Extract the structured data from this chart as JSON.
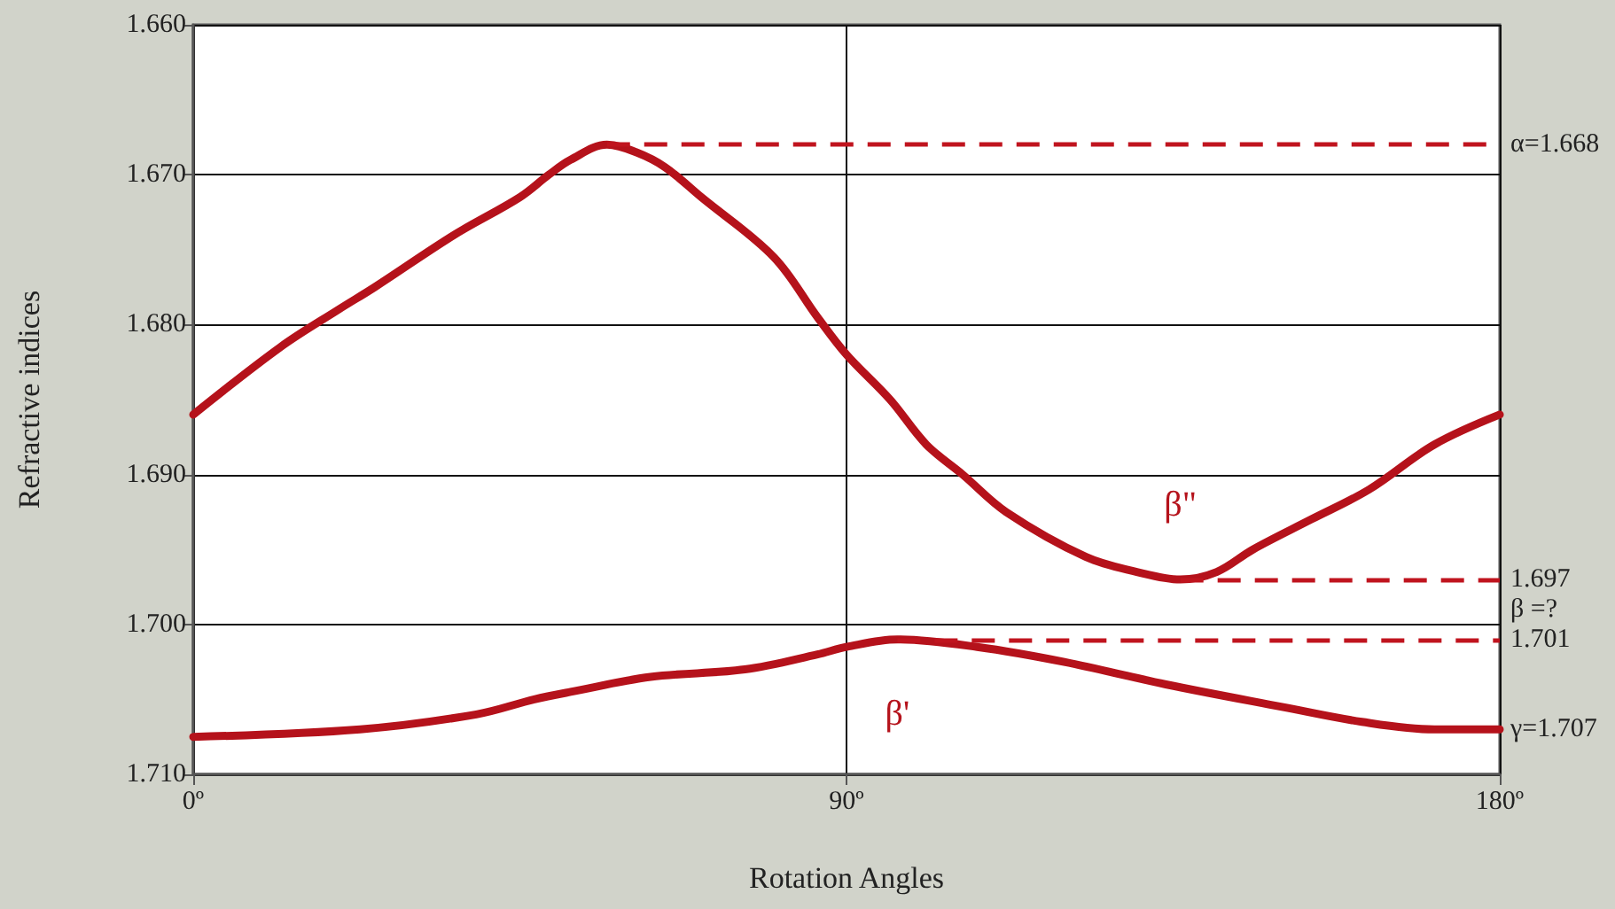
{
  "chart_data": {
    "type": "line",
    "xlabel": "Rotation Angles",
    "ylabel": "Refractive indices",
    "xlim": [
      0,
      180
    ],
    "xticks": [
      {
        "value": 0,
        "label": "0º"
      },
      {
        "value": 90,
        "label": "90º"
      },
      {
        "value": 180,
        "label": "180º"
      }
    ],
    "ylim": [
      1.71,
      1.66
    ],
    "yticks": [
      {
        "value": 1.66,
        "label": "1.660"
      },
      {
        "value": 1.67,
        "label": "1.670"
      },
      {
        "value": 1.68,
        "label": "1.680"
      },
      {
        "value": 1.69,
        "label": "1.690"
      },
      {
        "value": 1.7,
        "label": "1.700"
      },
      {
        "value": 1.71,
        "label": "1.710"
      }
    ],
    "series": [
      {
        "name": "β\"",
        "color": "#b5121b",
        "x": [
          0,
          12,
          20,
          25,
          36,
          45,
          49,
          52,
          57,
          61,
          65,
          70,
          80,
          86,
          90,
          96,
          101,
          106,
          112,
          123,
          130,
          136,
          141,
          146,
          154,
          162,
          171,
          180
        ],
        "values": [
          1.686,
          1.6815,
          1.679,
          1.6775,
          1.674,
          1.6715,
          1.67,
          1.669,
          1.668,
          1.6685,
          1.6695,
          1.6715,
          1.6755,
          1.6795,
          1.682,
          1.685,
          1.688,
          1.69,
          1.6925,
          1.6955,
          1.6965,
          1.697,
          1.6965,
          1.695,
          1.693,
          1.691,
          1.688,
          1.686
        ]
      },
      {
        "name": "β'",
        "color": "#b5121b",
        "x": [
          0,
          23,
          39,
          47,
          52,
          63,
          76,
          86,
          90,
          97,
          108,
          120,
          134,
          150,
          161,
          171,
          180
        ],
        "values": [
          1.7075,
          1.707,
          1.706,
          1.705,
          1.7045,
          1.7035,
          1.703,
          1.702,
          1.7015,
          1.701,
          1.7015,
          1.7025,
          1.704,
          1.7055,
          1.7065,
          1.707,
          1.707
        ]
      }
    ],
    "ref_lines": [
      {
        "axis": "y",
        "value": 1.668,
        "label": "α=1.668",
        "color": "#c0141e",
        "line_style": "dashed"
      },
      {
        "axis": "y",
        "value": 1.697,
        "label": "1.697",
        "color": "#c0141e",
        "line_style": "dashed"
      },
      {
        "axis": "y",
        "value": 1.701,
        "label": "1.701",
        "color": "#c0141e",
        "line_style": "dashed"
      }
    ],
    "annotations": [
      "β =?",
      {
        "text": "γ=1.707",
        "x": 180,
        "y": 1.707
      }
    ],
    "grid": true,
    "marker": "none",
    "line_style": "solid"
  }
}
